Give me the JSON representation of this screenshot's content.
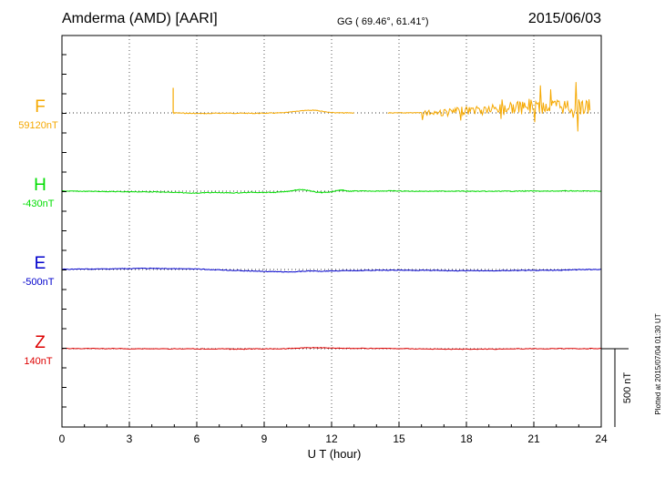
{
  "header": {
    "station": "Amderma (AMD)  [AARI]",
    "coords": "GG ( 69.46°,  61.41°)",
    "date": "2015/06/03"
  },
  "footer": {
    "plotted": "Plotted at 2015/07/04 01:30 UT"
  },
  "chart_data": {
    "type": "line",
    "title": "Amderma (AMD)  [AARI]",
    "xlabel": "U T (hour)",
    "xlim": [
      0,
      24
    ],
    "x_ticks": [
      0,
      3,
      6,
      9,
      12,
      15,
      18,
      21,
      24
    ],
    "grid": "dotted vertical at every 3 h; dotted horizontal baseline per component",
    "scale_bar": {
      "label": "500 nT",
      "value_nT": 500
    },
    "scale_nT_per_panel": 1000,
    "colors": {
      "F": "#f5a800",
      "H": "#00dd00",
      "E": "#0000cc",
      "Z": "#dd0000",
      "axis": "#000000"
    },
    "series": [
      {
        "name": "F",
        "baseline_label": "59120nT",
        "baseline_nT": 59120,
        "x": [
          4.95,
          5.0,
          5.5,
          6.0,
          6.5,
          7.0,
          7.5,
          8.0,
          8.5,
          9.0,
          9.5,
          10.0,
          10.5,
          11.0,
          11.3,
          11.5,
          12.0,
          12.5,
          13.0,
          null,
          14.5,
          15.0,
          15.5,
          16.0,
          16.5,
          17.0,
          17.5,
          18.0,
          18.5,
          19.0,
          19.5,
          20.0,
          20.5,
          21.0,
          21.5,
          22.0,
          22.5,
          23.0,
          23.5
        ],
        "values": [
          59120,
          59120,
          59118,
          59116,
          59116,
          59118,
          59118,
          59118,
          59117,
          59118,
          59119,
          59122,
          59132,
          59136,
          59138,
          59132,
          59122,
          59120,
          59120,
          null,
          59120,
          59120,
          59120,
          59122,
          59124,
          59120,
          59128,
          59135,
          59140,
          59142,
          59145,
          59155,
          59152,
          59165,
          59158,
          59162,
          59160,
          59158,
          59150
        ],
        "spike": {
          "x": 4.95,
          "values_nT": [
            59120,
            59280
          ]
        },
        "gap_hours": [
          13.0,
          14.5
        ]
      },
      {
        "name": "H",
        "baseline_label": "-430nT",
        "baseline_nT": -430,
        "x": [
          0,
          0.5,
          1,
          1.5,
          2,
          2.5,
          3,
          3.5,
          4,
          4.5,
          5,
          5.5,
          6,
          6.5,
          7,
          7.5,
          8,
          8.5,
          9,
          9.5,
          10,
          10.3,
          10.7,
          11,
          11.3,
          11.6,
          12,
          12.3,
          12.5,
          12.8,
          13,
          13.5,
          14,
          14.5,
          15,
          15.5,
          16,
          16.5,
          17,
          17.5,
          18,
          18.5,
          19,
          19.5,
          20,
          20.5,
          21,
          21.5,
          22,
          22.5,
          23,
          23.5,
          24
        ],
        "values": [
          -429,
          -430,
          -431,
          -431,
          -432,
          -433,
          -433,
          -434,
          -434,
          -436,
          -438,
          -441,
          -442,
          -439,
          -439,
          -441,
          -440,
          -437,
          -438,
          -438,
          -432,
          -425,
          -419,
          -426,
          -436,
          -439,
          -434,
          -424,
          -423,
          -431,
          -429,
          -429,
          -429,
          -428,
          -429,
          -430,
          -430,
          -430,
          -430,
          -429,
          -430,
          -431,
          -431,
          -430,
          -430,
          -429,
          -429,
          -430,
          -429,
          -428,
          -429,
          -429,
          -430
        ]
      },
      {
        "name": "E",
        "baseline_label": "-500nT",
        "baseline_nT": -500,
        "x": [
          0,
          0.5,
          1,
          1.5,
          2,
          2.5,
          3,
          3.5,
          4,
          4.5,
          5,
          5.5,
          6,
          6.5,
          7,
          7.5,
          8,
          8.5,
          9,
          9.5,
          10,
          10.5,
          11,
          11.5,
          12,
          12.5,
          13,
          13.5,
          14,
          14.5,
          15,
          15.5,
          16,
          16.5,
          17,
          17.5,
          18,
          18.5,
          19,
          19.5,
          20,
          20.5,
          21,
          21.5,
          22,
          22.5,
          23,
          23.5,
          24
        ],
        "values": [
          -498,
          -498,
          -497,
          -497,
          -496,
          -495,
          -494,
          -493,
          -493,
          -494,
          -495,
          -496,
          -497,
          -500,
          -502,
          -505,
          -508,
          -510,
          -512,
          -514,
          -516,
          -514,
          -509,
          -511,
          -509,
          -508,
          -507,
          -506,
          -505,
          -505,
          -504,
          -505,
          -505,
          -506,
          -507,
          -508,
          -508,
          -508,
          -508,
          -507,
          -507,
          -506,
          -506,
          -505,
          -505,
          -503,
          -501,
          -500,
          -499
        ]
      },
      {
        "name": "Z",
        "baseline_label": "140nT",
        "baseline_nT": 140,
        "x": [
          0,
          1,
          2,
          3,
          4,
          5,
          6,
          7,
          7.5,
          8,
          8.5,
          9,
          9.5,
          10,
          10.5,
          11,
          11.5,
          12,
          12.5,
          13,
          14,
          15,
          16,
          17,
          18,
          19,
          20,
          21,
          22,
          23,
          24
        ],
        "values": [
          141,
          141,
          141,
          140,
          140,
          139,
          139,
          139,
          138,
          138,
          139,
          139,
          139,
          140,
          144,
          147,
          146,
          145,
          143,
          142,
          142,
          141,
          139,
          137,
          137,
          138,
          139,
          140,
          140,
          141,
          141
        ]
      }
    ]
  }
}
